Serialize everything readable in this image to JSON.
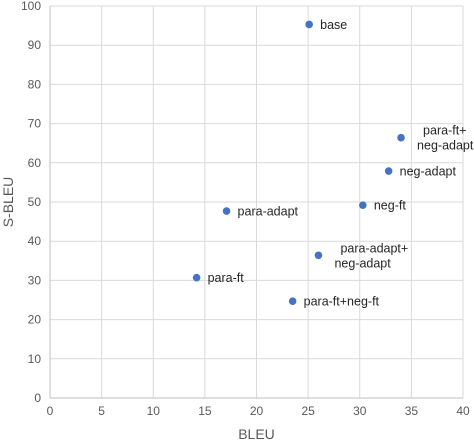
{
  "chart_data": {
    "type": "scatter",
    "xlabel": "BLEU",
    "ylabel": "S-BLEU",
    "xlim": [
      0,
      40
    ],
    "ylim": [
      0,
      100
    ],
    "xticks": [
      "0",
      "5",
      "10",
      "15",
      "20",
      "25",
      "30",
      "35",
      "40"
    ],
    "yticks": [
      "0",
      "10",
      "20",
      "30",
      "40",
      "50",
      "60",
      "70",
      "80",
      "90",
      "100"
    ],
    "grid": true,
    "legend": "none",
    "marker_color": "#4472C4",
    "gridline_color": "#D9D9D9",
    "points": [
      {
        "label": "base",
        "x": 25.1,
        "y": 95.3
      },
      {
        "label": "para-ft+\nneg-adapt",
        "x": 34.0,
        "y": 66.4
      },
      {
        "label": "neg-adapt",
        "x": 32.8,
        "y": 57.9
      },
      {
        "label": "neg-ft",
        "x": 30.3,
        "y": 49.2
      },
      {
        "label": "para-adapt",
        "x": 17.1,
        "y": 47.7
      },
      {
        "label": "para-adapt+\nneg-adapt",
        "x": 26.0,
        "y": 36.4
      },
      {
        "label": "para-ft",
        "x": 14.2,
        "y": 30.7
      },
      {
        "label": "para-ft+neg-ft",
        "x": 23.5,
        "y": 24.7
      }
    ]
  }
}
